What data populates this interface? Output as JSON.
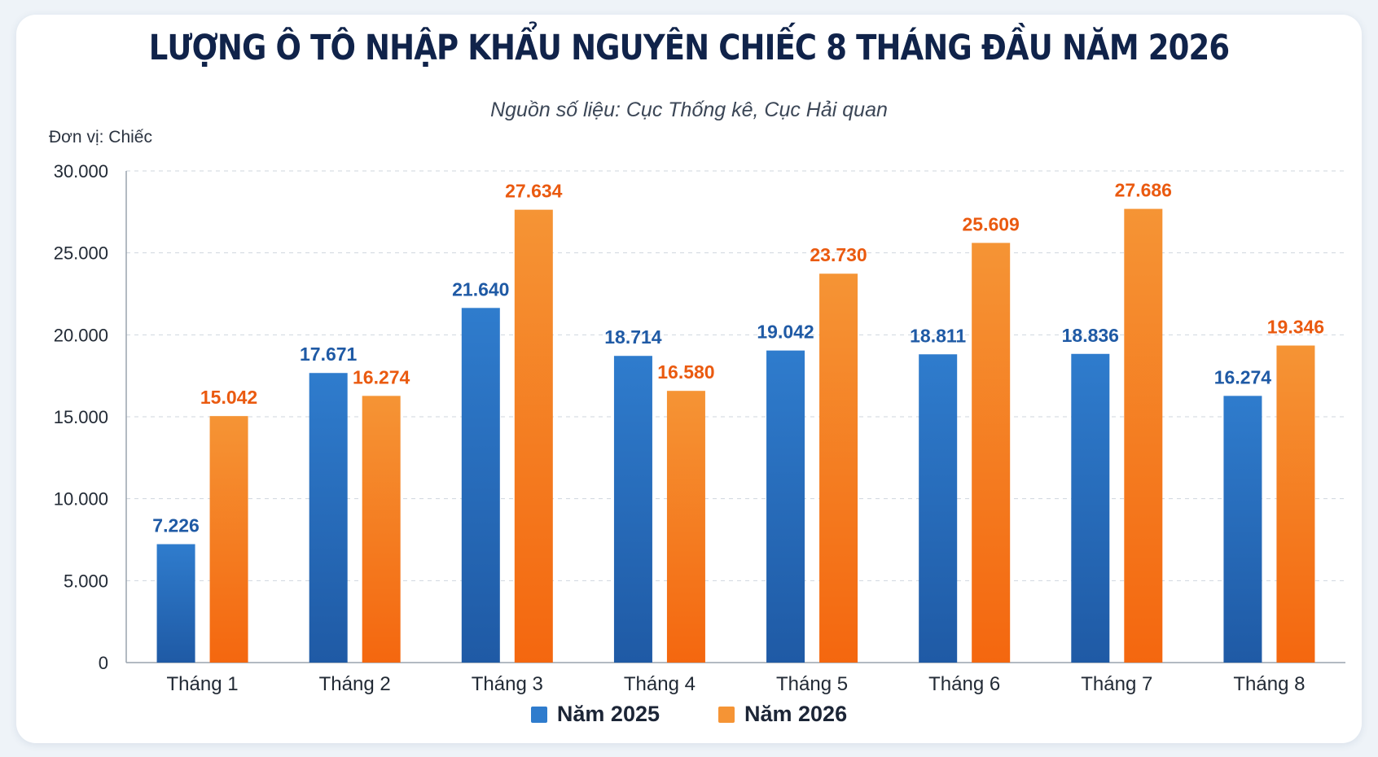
{
  "colors": {
    "series_2025": "#2f7ccd",
    "series_2025_dark": "#1f5aa5",
    "series_2026": "#f59435",
    "series_2026_dark": "#f4670f",
    "label_2025": "#1f5aa5",
    "label_2026": "#ea5a10"
  },
  "chart_data": {
    "type": "bar",
    "title": "LƯỢNG Ô TÔ NHẬP KHẨU NGUYÊN CHIẾC 8 THÁNG ĐẦU NĂM 2026",
    "subtitle_prefix": "Nguồn số liệu: ",
    "subtitle_source": "Cục Thống kê, Cục Hải quan",
    "unit_label": "Đơn vị: Chiếc",
    "xlabel": "",
    "ylabel": "",
    "ylim": [
      0,
      30000
    ],
    "y_ticks": [
      0,
      5000,
      10000,
      15000,
      20000,
      25000,
      30000
    ],
    "y_tick_labels": [
      "0",
      "5.000",
      "10.000",
      "15.000",
      "20.000",
      "25.000",
      "30.000"
    ],
    "grid": true,
    "legend_position": "bottom",
    "categories": [
      "Tháng 1",
      "Tháng 2",
      "Tháng 3",
      "Tháng 4",
      "Tháng 5",
      "Tháng 6",
      "Tháng 7",
      "Tháng 8"
    ],
    "series": [
      {
        "name": "Năm 2025",
        "values": [
          7226,
          17671,
          21640,
          18714,
          19042,
          18811,
          18836,
          16274
        ],
        "labels": [
          "7.226",
          "17.671",
          "21.640",
          "18.714",
          "19.042",
          "18.811",
          "18.836",
          "16.274"
        ]
      },
      {
        "name": "Năm 2026",
        "values": [
          15042,
          16274,
          27634,
          16580,
          23730,
          25609,
          27686,
          19346
        ],
        "labels": [
          "15.042",
          "16.274",
          "27.634",
          "16.580",
          "23.730",
          "25.609",
          "27.686",
          "19.346"
        ]
      }
    ]
  }
}
